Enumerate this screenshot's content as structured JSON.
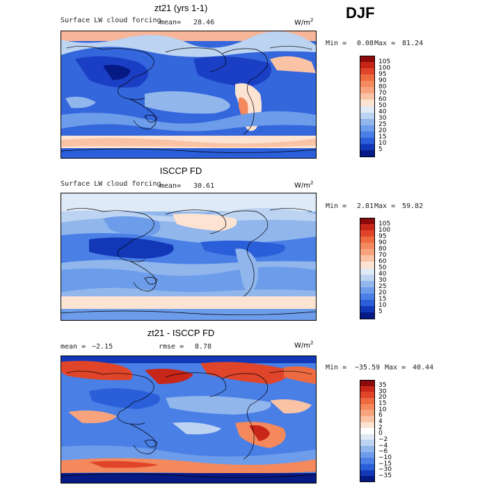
{
  "season": "DJF",
  "panels": [
    {
      "title": "zt21 (yrs 1-1)",
      "variable": "Surface LW cloud forcing",
      "stat1_label": "mean=",
      "stat1_value": "28.46",
      "units_base": "W/m",
      "units_exp": "2",
      "min_label": "Min =",
      "min_value": "0.08",
      "max_label": "Max =",
      "max_value": "81.24",
      "levels": [
        "105",
        "100",
        "95",
        "90",
        "80",
        "70",
        "60",
        "50",
        "40",
        "30",
        "25",
        "20",
        "15",
        "10",
        "5"
      ],
      "colors": [
        "#8b0a0a",
        "#c9261a",
        "#e0452a",
        "#ee6b42",
        "#f4895d",
        "#f7a47e",
        "#fac3a6",
        "#fde3d2",
        "#dfeaf7",
        "#bcd3f1",
        "#90b6ec",
        "#6c9cea",
        "#4a7fe6",
        "#2a5fd9",
        "#1238b8",
        "#061a85"
      ]
    },
    {
      "title": "ISCCP FD",
      "variable": "Surface LW cloud forcing",
      "stat1_label": "mean=",
      "stat1_value": "30.61",
      "units_base": "W/m",
      "units_exp": "2",
      "min_label": "Min =",
      "min_value": "2.81",
      "max_label": "Max =",
      "max_value": "59.82",
      "levels": [
        "105",
        "100",
        "95",
        "90",
        "80",
        "70",
        "60",
        "50",
        "40",
        "30",
        "25",
        "20",
        "15",
        "10",
        "5"
      ],
      "colors": [
        "#8b0a0a",
        "#c9261a",
        "#e0452a",
        "#ee6b42",
        "#f4895d",
        "#f7a47e",
        "#fac3a6",
        "#fde3d2",
        "#dfeaf7",
        "#bcd3f1",
        "#90b6ec",
        "#6c9cea",
        "#4a7fe6",
        "#2a5fd9",
        "#1238b8",
        "#061a85"
      ]
    },
    {
      "title": "zt21 - ISCCP FD",
      "stat1_label": "mean =",
      "stat1_value": "−2.15",
      "stat2_label": "rmse =",
      "stat2_value": "8.78",
      "units_base": "W/m",
      "units_exp": "2",
      "min_label": "Min =",
      "min_value": "−35.59",
      "max_label": "Max =",
      "max_value": "40.44",
      "levels": [
        "35",
        "30",
        "20",
        "15",
        "10",
        "6",
        "4",
        "2",
        "0",
        "−2",
        "−4",
        "−6",
        "−10",
        "−15",
        "−30",
        "−35"
      ],
      "colors": [
        "#8b0a0a",
        "#c9261a",
        "#e0452a",
        "#ee6b42",
        "#f4895d",
        "#f7a47e",
        "#fac3a6",
        "#fde3d2",
        "#ffffff",
        "#dfeaf7",
        "#bcd3f1",
        "#90b6ec",
        "#6c9cea",
        "#4a7fe6",
        "#2a5fd9",
        "#1238b8",
        "#061a85"
      ]
    }
  ]
}
